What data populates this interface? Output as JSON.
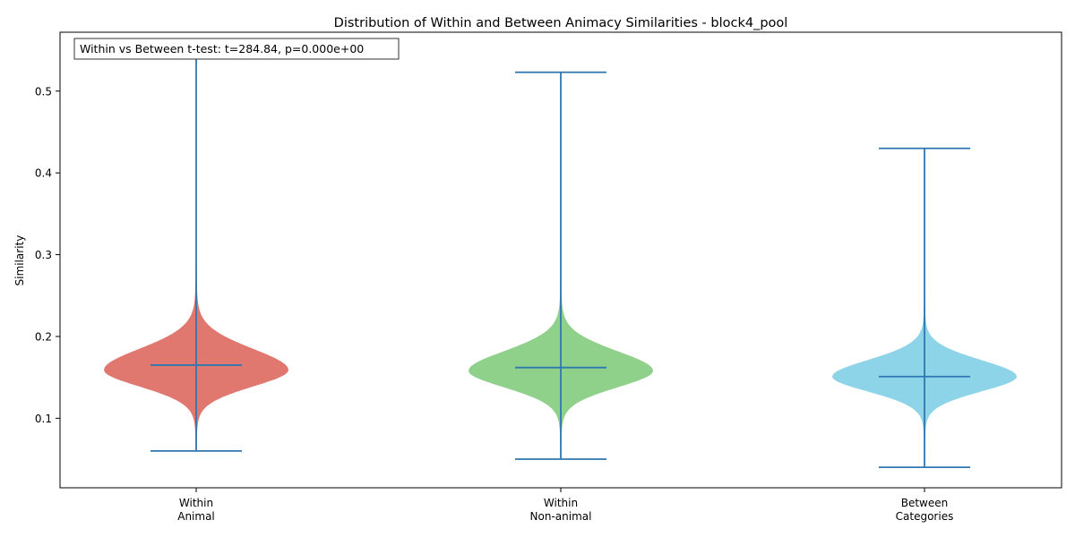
{
  "chart_data": {
    "type": "violin",
    "title": "Distribution of Within and Between Animacy Similarities - block4_pool",
    "xlabel": "",
    "ylabel": "Similarity",
    "ylim": [
      0.015,
      0.572
    ],
    "yticks": [
      0.1,
      0.2,
      0.3,
      0.4,
      0.5
    ],
    "ytick_labels": [
      "0.1",
      "0.2",
      "0.3",
      "0.4",
      "0.5"
    ],
    "grid": false,
    "annotation": "Within vs Between t-test: t=284.84, p=0.000e+00",
    "categories": [
      {
        "label_lines": [
          "Within",
          "Animal"
        ],
        "color": "#e0786f",
        "min": 0.06,
        "max": 0.546,
        "mean": 0.165,
        "mode": 0.159,
        "spread_low": 0.021,
        "spread_high": 0.027,
        "max_halfwidth": 0.105
      },
      {
        "label_lines": [
          "Within",
          "Non-animal"
        ],
        "color": "#8fd08b",
        "min": 0.05,
        "max": 0.523,
        "mean": 0.162,
        "mode": 0.158,
        "spread_low": 0.021,
        "spread_high": 0.025,
        "max_halfwidth": 0.105
      },
      {
        "label_lines": [
          "Between",
          "Categories"
        ],
        "color": "#8ed4e9",
        "min": 0.04,
        "max": 0.43,
        "mean": 0.151,
        "mode": 0.151,
        "spread_low": 0.019,
        "spread_high": 0.021,
        "max_halfwidth": 0.105
      }
    ]
  }
}
